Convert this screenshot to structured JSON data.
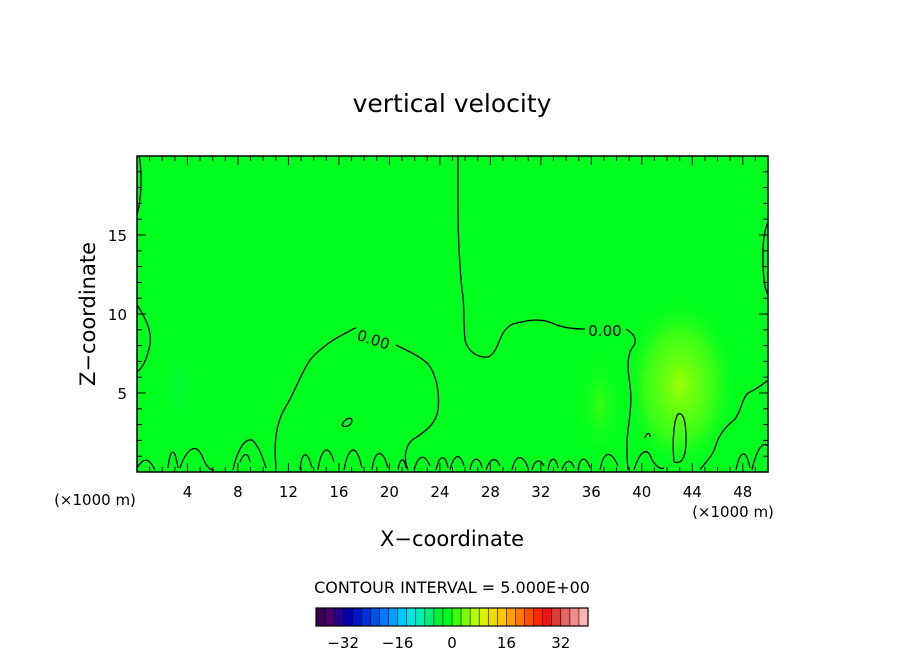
{
  "chart_data": {
    "type": "heatmap",
    "title": "vertical velocity",
    "xlabel": "X−coordinate",
    "ylabel": "Z−coordinate",
    "xlim": [
      0,
      50
    ],
    "ylim": [
      0,
      20
    ],
    "x_unit": "(×1000 m)",
    "x_ticks": [
      4,
      8,
      12,
      16,
      20,
      24,
      28,
      32,
      36,
      40,
      44,
      48
    ],
    "y_ticks": [
      5,
      10,
      15
    ],
    "field_background_color": "#00ff1e",
    "contour_label": "0.00",
    "contour_labels_at": [
      {
        "x": 18.9,
        "z": 8.4,
        "text": "0.00"
      },
      {
        "x": 37.0,
        "z": 9.0,
        "text": "0.00"
      }
    ],
    "warm_anomalies": [
      {
        "x": 43,
        "z": 5.5,
        "strength": "moderate"
      },
      {
        "x": 37,
        "z": 4.5,
        "strength": "weak"
      }
    ],
    "contour_interval_text": "CONTOUR INTERVAL =  5.000E+00",
    "colorbar": {
      "tick_labels": [
        "−32",
        "−16",
        "0",
        "16",
        "32"
      ],
      "tick_values": [
        -32,
        -16,
        0,
        16,
        32
      ],
      "range": [
        -40,
        40
      ],
      "colors": [
        "#3c0050",
        "#46006e",
        "#28008c",
        "#0000aa",
        "#0014c8",
        "#0032dc",
        "#0050f0",
        "#0078ff",
        "#00a0ff",
        "#00c8ff",
        "#00e6e6",
        "#00f0b4",
        "#00f078",
        "#00f03c",
        "#00ff1e",
        "#3cff00",
        "#78ff00",
        "#b4ff00",
        "#dcf000",
        "#f0dc00",
        "#ffc800",
        "#ffa000",
        "#ff7800",
        "#ff5000",
        "#ff2800",
        "#f01414",
        "#dc3c3c",
        "#e66464",
        "#f08c8c",
        "#ffb4b4"
      ]
    }
  }
}
